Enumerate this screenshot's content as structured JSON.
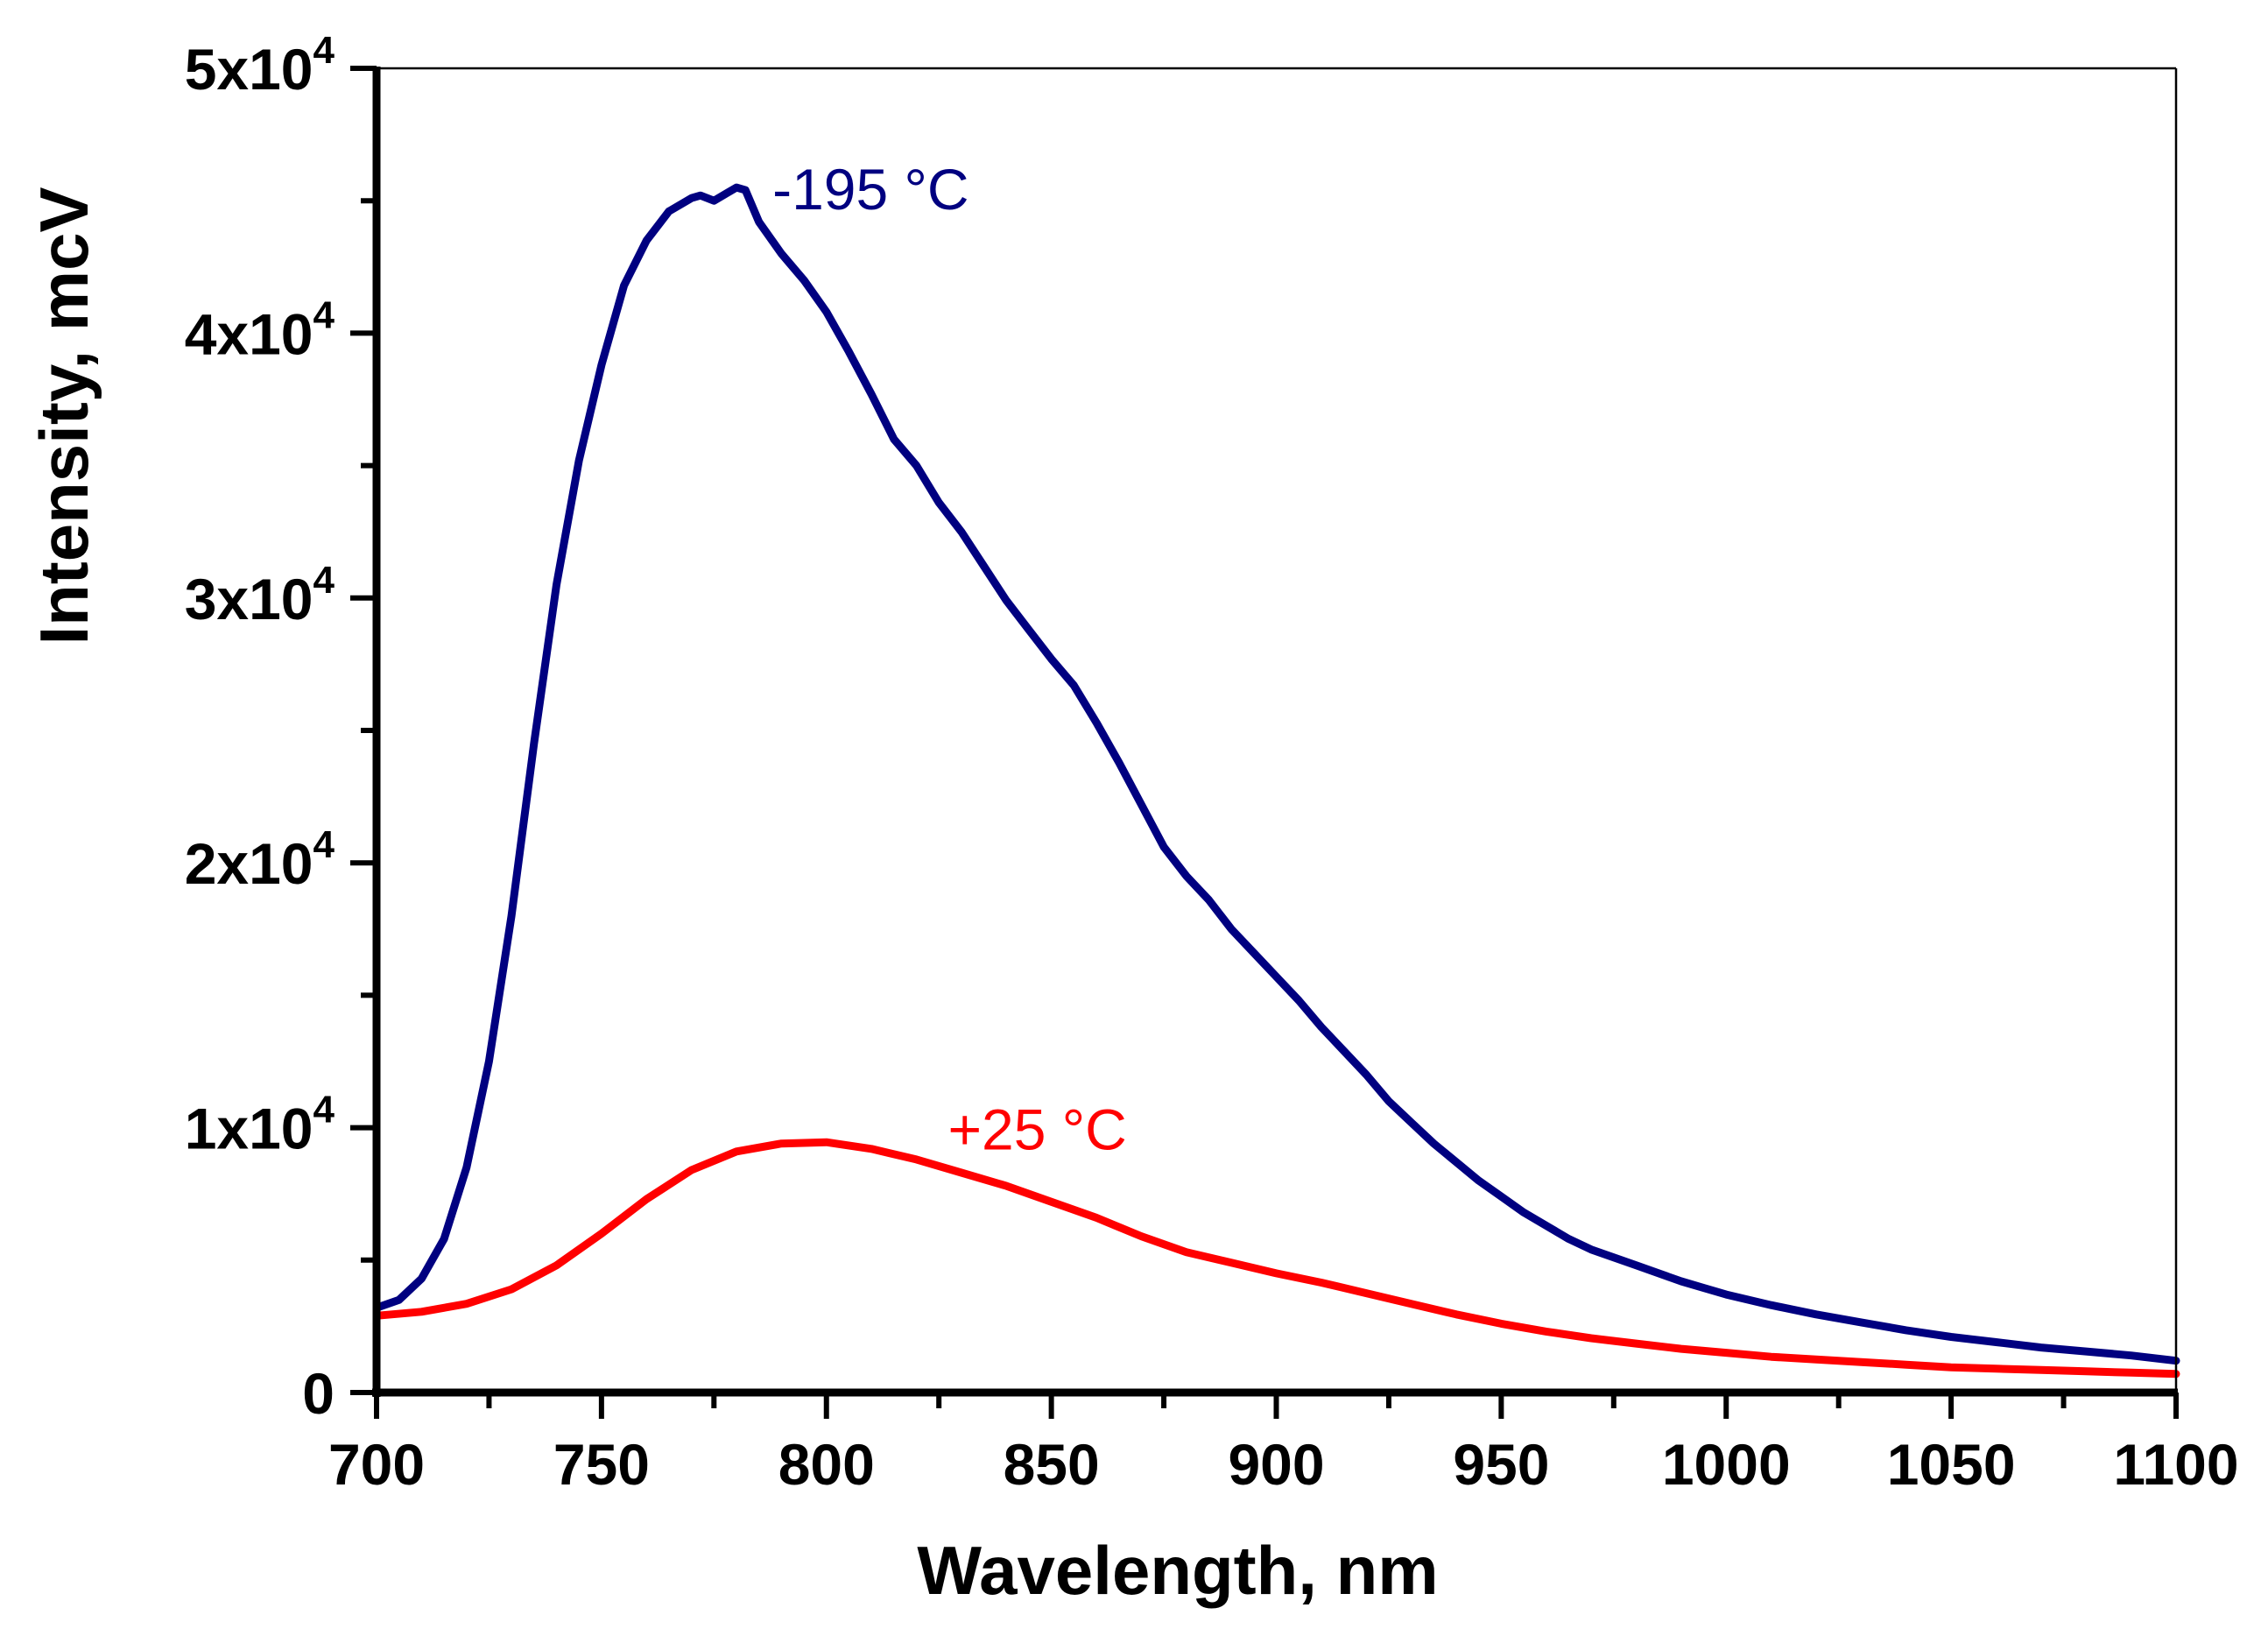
{
  "chart_data": {
    "type": "line",
    "title": "",
    "xlabel": "Wavelength, nm",
    "ylabel": "Intensity, mcV",
    "xlim": [
      700,
      1100
    ],
    "ylim": [
      0,
      50000
    ],
    "grid": false,
    "x_ticks": [
      {
        "value": 700,
        "label": "700"
      },
      {
        "value": 750,
        "label": "750"
      },
      {
        "value": 800,
        "label": "800"
      },
      {
        "value": 850,
        "label": "850"
      },
      {
        "value": 900,
        "label": "900"
      },
      {
        "value": 950,
        "label": "950"
      },
      {
        "value": 1000,
        "label": "1000"
      },
      {
        "value": 1050,
        "label": "1050"
      },
      {
        "value": 1100,
        "label": "1100"
      }
    ],
    "y_ticks": [
      {
        "value": 0,
        "label": "0",
        "mantissa": "",
        "exponent": ""
      },
      {
        "value": 10000,
        "label": "1x10",
        "mantissa": "1x10",
        "exponent": "4"
      },
      {
        "value": 20000,
        "label": "2x10",
        "mantissa": "2x10",
        "exponent": "4"
      },
      {
        "value": 30000,
        "label": "3x10",
        "mantissa": "3x10",
        "exponent": "4"
      },
      {
        "value": 40000,
        "label": "4x10",
        "mantissa": "4x10",
        "exponent": "4"
      },
      {
        "value": 50000,
        "label": "5x10",
        "mantissa": "5x10",
        "exponent": "4"
      }
    ],
    "series": [
      {
        "name": "-195 °C",
        "color": "#000080",
        "annotation": {
          "text": "-195 °C",
          "x": 788,
          "y": 45500
        },
        "x": [
          700,
          705,
          710,
          715,
          720,
          725,
          730,
          735,
          740,
          745,
          750,
          755,
          760,
          765,
          770,
          772,
          775,
          778,
          780,
          782,
          785,
          790,
          795,
          800,
          805,
          810,
          815,
          820,
          825,
          830,
          835,
          840,
          845,
          850,
          855,
          860,
          865,
          870,
          875,
          880,
          885,
          890,
          895,
          900,
          905,
          910,
          915,
          920,
          925,
          930,
          935,
          940,
          945,
          950,
          955,
          960,
          965,
          970,
          975,
          980,
          985,
          990,
          995,
          1000,
          1010,
          1020,
          1030,
          1040,
          1050,
          1060,
          1070,
          1080,
          1090,
          1100
        ],
        "y": [
          3200,
          3500,
          4300,
          5800,
          8500,
          12500,
          18000,
          24500,
          30500,
          35200,
          38800,
          41800,
          43500,
          44600,
          45100,
          45200,
          45000,
          45300,
          45500,
          45400,
          44200,
          43000,
          42000,
          40800,
          39300,
          37700,
          36000,
          35000,
          33600,
          32500,
          31200,
          29900,
          28800,
          27700,
          26700,
          25300,
          23800,
          22200,
          20600,
          19500,
          18600,
          17500,
          16600,
          15700,
          14800,
          13800,
          12900,
          12000,
          11000,
          10200,
          9400,
          8700,
          8000,
          7400,
          6800,
          6300,
          5800,
          5400,
          5100,
          4800,
          4500,
          4200,
          3950,
          3700,
          3300,
          2950,
          2650,
          2350,
          2100,
          1900,
          1700,
          1550,
          1400,
          1200
        ]
      },
      {
        "name": "+25 °C",
        "color": "#ff0000",
        "annotation": {
          "text": "+25 °C",
          "x": 827,
          "y": 10000
        },
        "x": [
          700,
          710,
          720,
          730,
          740,
          750,
          760,
          770,
          780,
          790,
          800,
          810,
          820,
          830,
          840,
          850,
          860,
          870,
          880,
          890,
          900,
          910,
          920,
          930,
          940,
          950,
          960,
          970,
          980,
          990,
          1000,
          1010,
          1020,
          1030,
          1040,
          1050,
          1060,
          1070,
          1080,
          1090,
          1100
        ],
        "y": [
          2900,
          3050,
          3350,
          3900,
          4800,
          6000,
          7300,
          8400,
          9100,
          9400,
          9450,
          9200,
          8800,
          8300,
          7800,
          7200,
          6600,
          5900,
          5300,
          4900,
          4500,
          4150,
          3750,
          3350,
          2950,
          2600,
          2300,
          2050,
          1850,
          1650,
          1500,
          1350,
          1250,
          1150,
          1050,
          950,
          900,
          850,
          800,
          750,
          700
        ]
      }
    ]
  }
}
